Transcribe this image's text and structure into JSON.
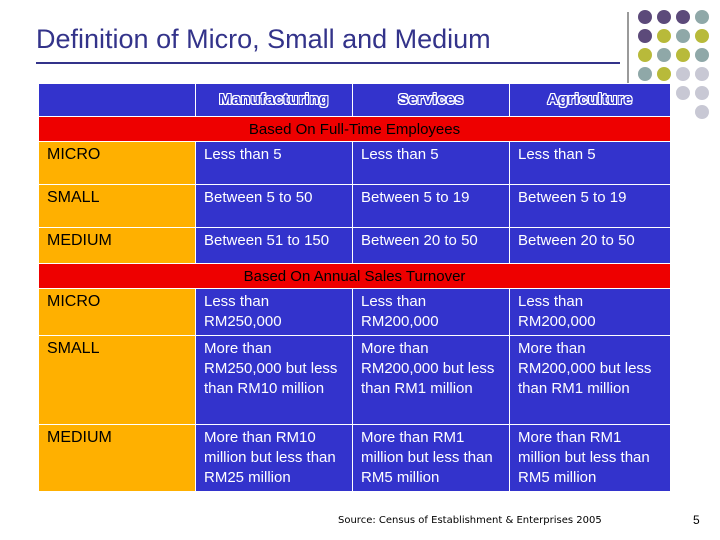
{
  "slide": {
    "title": "Definition of Micro, Small and Medium",
    "source": "Source: Census of Establishment & Enterprises 2005",
    "page_number": "5"
  },
  "table": {
    "headers": [
      "",
      "Manufacturing",
      "Services",
      "Agriculture"
    ],
    "section_1": "Based On Full-Time Employees",
    "employees": [
      {
        "label": "MICRO",
        "manufacturing": "Less than 5",
        "services": "Less than 5",
        "agriculture": "Less than 5"
      },
      {
        "label": "SMALL",
        "manufacturing": "Between 5 to 50",
        "services": "Between 5 to 19",
        "agriculture": "Between 5 to 19"
      },
      {
        "label": "MEDIUM",
        "manufacturing": "Between 51 to 150",
        "services": "Between 20 to 50",
        "agriculture": "Between 20 to 50"
      }
    ],
    "section_2": "Based On Annual Sales Turnover",
    "turnover": [
      {
        "label": "MICRO",
        "manufacturing": "Less than RM250,000",
        "services": "Less than RM200,000",
        "agriculture": "Less than RM200,000"
      },
      {
        "label": "SMALL",
        "manufacturing": "More than RM250,000 but less than RM10 million",
        "services": "More than RM200,000 but less than RM1 million",
        "agriculture": "More than RM200,000 but less than RM1 million"
      },
      {
        "label": "MEDIUM",
        "manufacturing": "More than RM10 million but less than RM25 million",
        "services": "More than RM1 million but less than RM5 million",
        "agriculture": "More than RM1 million but less than RM5 million"
      }
    ]
  },
  "colors": {
    "title": "#33338a",
    "table_cell": "#3333cc",
    "row_label": "#ffb000",
    "section_band": "#ee0000",
    "dot_purple": "#5c4a7a",
    "dot_olive": "#b8ba3a",
    "dot_teal": "#8fa8a8",
    "dot_grey": "#c8c8d4"
  }
}
